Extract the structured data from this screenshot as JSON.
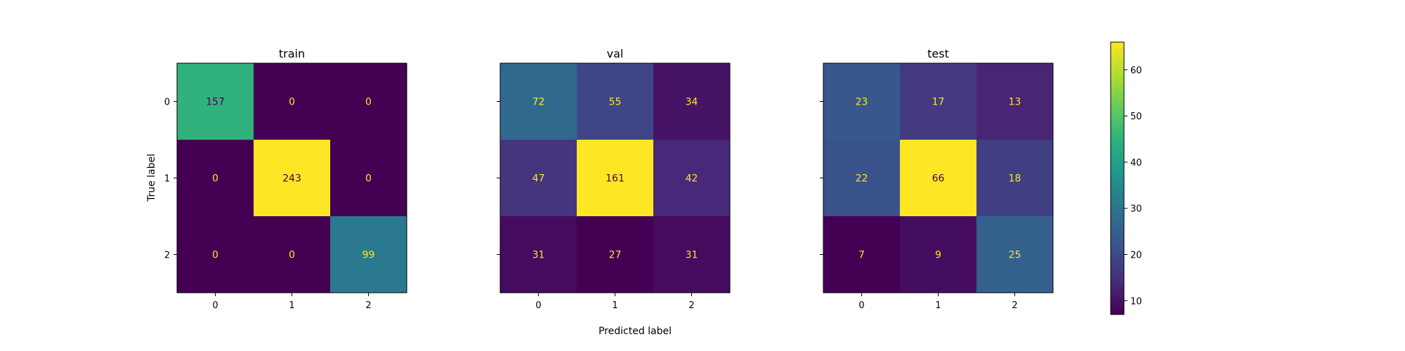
{
  "figure": {
    "xlabel": "Predicted label",
    "ylabel": "True label"
  },
  "chart_data": [
    {
      "type": "heatmap",
      "title": "train",
      "categories": [
        "0",
        "1",
        "2"
      ],
      "xlabel": "",
      "ylabel": "True label",
      "values": [
        [
          157,
          0,
          0
        ],
        [
          0,
          243,
          0
        ],
        [
          0,
          0,
          99
        ]
      ]
    },
    {
      "type": "heatmap",
      "title": "val",
      "categories": [
        "0",
        "1",
        "2"
      ],
      "xlabel": "Predicted label",
      "ylabel": "",
      "values": [
        [
          72,
          55,
          34
        ],
        [
          47,
          161,
          42
        ],
        [
          31,
          27,
          31
        ]
      ]
    },
    {
      "type": "heatmap",
      "title": "test",
      "categories": [
        "0",
        "1",
        "2"
      ],
      "xlabel": "",
      "ylabel": "",
      "values": [
        [
          23,
          17,
          13
        ],
        [
          22,
          66,
          18
        ],
        [
          7,
          9,
          25
        ]
      ]
    }
  ],
  "colorbar": {
    "colormap": "viridis",
    "range": [
      7,
      66
    ],
    "ticks": [
      10,
      20,
      30,
      40,
      50,
      60
    ]
  },
  "colors": {
    "text_on_dark": "#fde725",
    "text_on_light": "#440154"
  }
}
